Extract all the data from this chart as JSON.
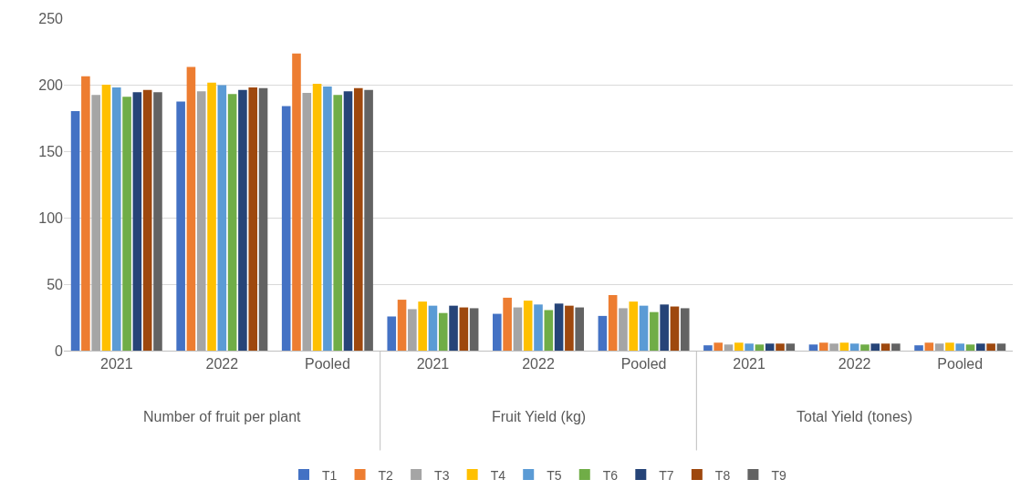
{
  "chart_data": {
    "type": "bar",
    "categories": [
      "2021",
      "2022",
      "Pooled",
      "2021",
      "2022",
      "Pooled",
      "2021",
      "2022",
      "Pooled"
    ],
    "annotations": [
      "Number of fruit per plant",
      "Fruit Yield (kg)",
      "Total Yield (tones)"
    ],
    "series": [
      {
        "name": "T1",
        "color": "#4472c4",
        "values": [
          180.2,
          187.4,
          183.9,
          25.7,
          27.7,
          26.1,
          4.0,
          4.6,
          4.0
        ]
      },
      {
        "name": "T2",
        "color": "#ed7d31",
        "values": [
          206.4,
          213.4,
          223.4,
          38.3,
          39.8,
          41.8,
          6.0,
          6.0,
          6.0
        ]
      },
      {
        "name": "T3",
        "color": "#a5a5a5",
        "values": [
          192.3,
          195.1,
          193.8,
          31.2,
          32.5,
          31.9,
          4.6,
          5.3,
          5.3
        ]
      },
      {
        "name": "T4",
        "color": "#ffc000",
        "values": [
          200.0,
          201.5,
          200.7,
          36.9,
          37.6,
          36.9,
          6.0,
          6.0,
          6.0
        ]
      },
      {
        "name": "T5",
        "color": "#5b9bd5",
        "values": [
          198.0,
          199.6,
          198.7,
          33.8,
          34.7,
          33.8,
          5.3,
          5.3,
          5.3
        ]
      },
      {
        "name": "T6",
        "color": "#70ad47",
        "values": [
          191.0,
          192.9,
          192.3,
          28.3,
          30.5,
          29.0,
          4.6,
          4.6,
          4.6
        ]
      },
      {
        "name": "T7",
        "color": "#264478",
        "values": [
          194.3,
          196.0,
          195.1,
          33.8,
          35.4,
          34.7,
          5.3,
          5.3,
          5.3
        ]
      },
      {
        "name": "T8",
        "color": "#9e480e",
        "values": [
          196.0,
          198.0,
          197.4,
          32.5,
          33.8,
          33.2,
          5.3,
          5.3,
          5.3
        ]
      },
      {
        "name": "T9",
        "color": "#636363",
        "values": [
          194.3,
          197.4,
          196.0,
          31.9,
          32.5,
          31.9,
          5.3,
          5.3,
          5.3
        ]
      }
    ],
    "ylim": [
      0,
      250
    ],
    "yticks": [
      0,
      50,
      100,
      150,
      200,
      250
    ],
    "grid": "y",
    "legend": "bottom"
  }
}
